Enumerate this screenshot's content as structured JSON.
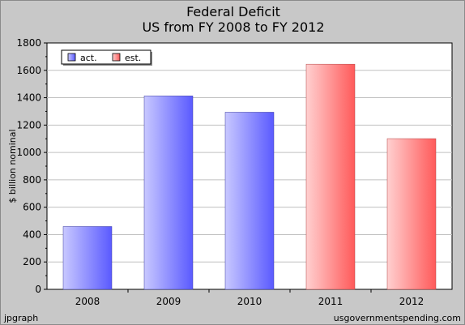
{
  "chart_data": {
    "type": "bar",
    "title": "Federal Deficit",
    "subtitle": "US from FY 2008 to FY 2012",
    "ylabel": "$ billion nominal",
    "xlabel": "",
    "ylim": [
      0,
      1800
    ],
    "yticks": [
      0,
      200,
      400,
      600,
      800,
      1000,
      1200,
      1400,
      1600,
      1800
    ],
    "categories": [
      "2008",
      "2009",
      "2010",
      "2011",
      "2012"
    ],
    "values": [
      459,
      1413,
      1294,
      1645,
      1101
    ],
    "kinds": [
      "act",
      "act",
      "act",
      "est",
      "est"
    ],
    "series": [
      {
        "name": "act.",
        "key": "act",
        "color": "#6f6fff"
      },
      {
        "name": "est.",
        "key": "est",
        "color": "#ff6f6f"
      }
    ],
    "grid": true,
    "legend_position": "top-left"
  },
  "footer": {
    "left": "jpgraph",
    "right": "usgovernmentspending.com"
  }
}
